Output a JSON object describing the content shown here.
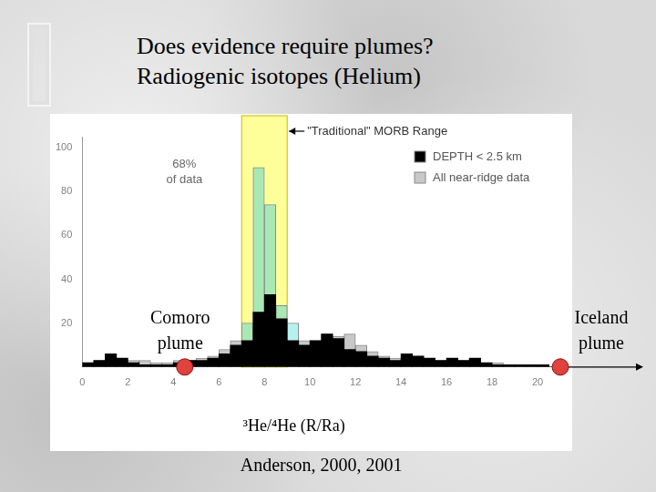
{
  "chart_data": {
    "type": "bar",
    "title": [
      "Does evidence require plumes?",
      "Radiogenic isotopes (Helium)"
    ],
    "source": "Anderson, 2000, 2001",
    "x_label": "³He/⁴He (R/Ra)",
    "bins": [
      0,
      0.5,
      1,
      1.5,
      2,
      2.5,
      3,
      3.5,
      4,
      4.5,
      5,
      5.5,
      6,
      6.5,
      7,
      7.5,
      8,
      8.5,
      9,
      9.5,
      10,
      10.5,
      11,
      11.5,
      12,
      12.5,
      13,
      13.5,
      14,
      14.5,
      15,
      15.5,
      16,
      16.5,
      17,
      17.5,
      18,
      18.5,
      19,
      19.5,
      20,
      20.5,
      21
    ],
    "series": [
      {
        "name": "DEPTH < 2.5 km",
        "color": "#000000",
        "values": [
          2,
          3,
          6,
          4,
          2,
          1,
          1,
          1,
          2,
          3,
          3,
          4,
          6,
          10,
          12,
          25,
          33,
          22,
          12,
          10,
          12,
          15,
          13,
          8,
          7,
          5,
          4,
          3,
          6,
          5,
          4,
          3,
          4,
          3,
          4,
          2,
          1,
          1,
          1,
          1,
          1,
          0
        ]
      },
      {
        "name": "All near-ridge data",
        "color": "#c8c8c8",
        "colors": [
          "#c8c8c8",
          "#c8c8c8",
          "#c8c8c8",
          "#c8c8c8",
          "#c8c8c8",
          "#c8c8c8",
          "#c8c8c8",
          "#c8c8c8",
          "#c8c8c8",
          "#c8c8c8",
          "#c8c8c8",
          "#c8c8c8",
          "#c8c8c8",
          "#c8c8c8",
          "#a8e8b4",
          "#a8e8b4",
          "#a8e8b4",
          "#a8e8b4",
          "#b8f0f0",
          "#c8c8c8",
          "#c8c8c8",
          "#c8c8c8",
          "#c8c8c8",
          "#c8c8c8",
          "#c8c8c8",
          "#c8c8c8",
          "#c8c8c8",
          "#c8c8c8",
          "#c8c8c8",
          "#c8c8c8",
          "#c8c8c8",
          "#c8c8c8",
          "#c8c8c8",
          "#c8c8c8",
          "#c8c8c8",
          "#c8c8c8",
          "#c8c8c8",
          "#c8c8c8",
          "#c8c8c8",
          "#c8c8c8",
          "#c8c8c8",
          "#c8c8c8"
        ],
        "values": [
          2,
          3,
          6,
          4,
          3,
          3,
          2,
          2,
          3,
          3,
          4,
          5,
          8,
          12,
          20,
          91,
          74,
          28,
          20,
          12,
          12,
          15,
          14,
          15,
          10,
          7,
          5,
          4,
          6,
          5,
          4,
          3,
          4,
          3,
          4,
          2,
          2,
          1,
          1,
          1,
          1,
          0
        ]
      }
    ],
    "xlim": [
      0,
      21
    ],
    "xticks": [
      0,
      2,
      4,
      6,
      8,
      10,
      12,
      14,
      16,
      18,
      20
    ],
    "ylim": [
      0,
      105
    ],
    "yticks": [
      20,
      40,
      60,
      80,
      100
    ],
    "grid": false,
    "legend": "top right",
    "morb_range": {
      "label": "\"Traditional\" MORB Range",
      "from": 7,
      "to": 9
    },
    "share_label": [
      "68%",
      "of data"
    ],
    "plumes": [
      {
        "label": [
          "Comoro",
          "plume"
        ],
        "value": 4.5
      },
      {
        "label": [
          "Iceland",
          "plume"
        ],
        "value": 21
      }
    ]
  }
}
